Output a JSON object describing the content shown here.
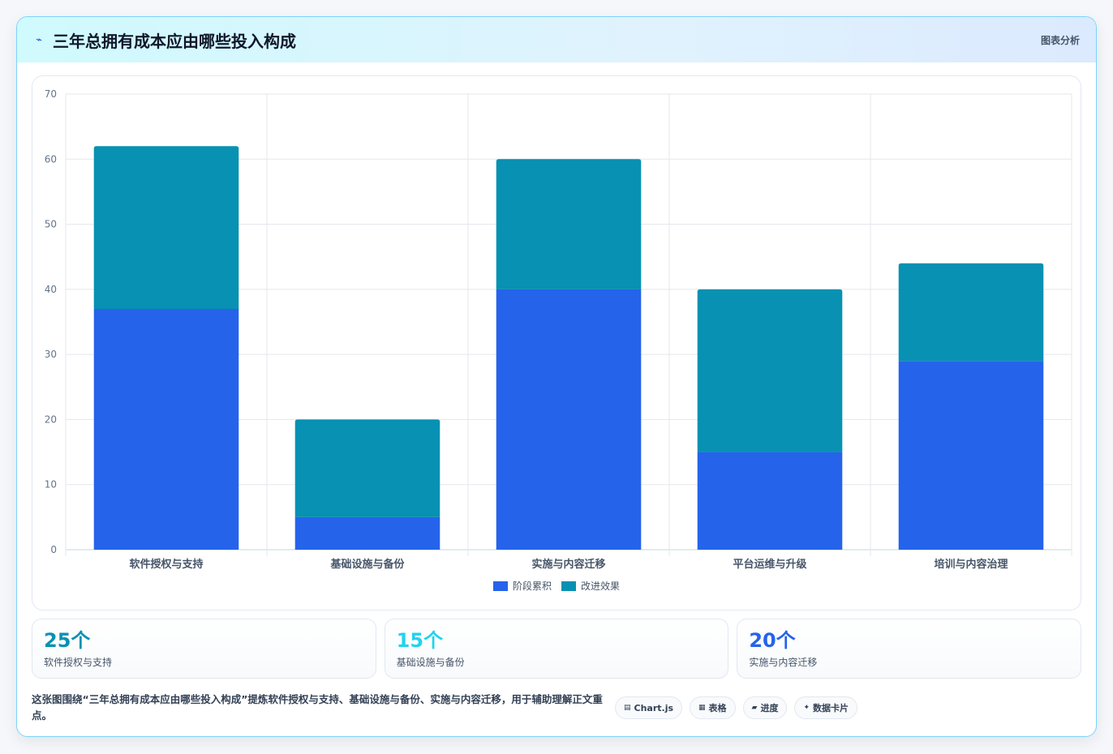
{
  "header": {
    "icon": "bolt-icon",
    "title": "三年总拥有成本应由哪些投入构成",
    "tag": "图表分析"
  },
  "chart_data": {
    "type": "bar",
    "stacked": true,
    "categories": [
      "软件授权与支持",
      "基础设施与备份",
      "实施与内容迁移",
      "平台运维与升级",
      "培训与内容治理"
    ],
    "series": [
      {
        "name": "阶段累积",
        "values": [
          37,
          5,
          40,
          15,
          29
        ],
        "color": "#2563eb"
      },
      {
        "name": "改进效果",
        "values": [
          25,
          15,
          20,
          25,
          15
        ],
        "color": "#0891b2"
      }
    ],
    "ylim": [
      0,
      70
    ],
    "yticks": [
      0,
      10,
      20,
      30,
      40,
      50,
      60,
      70
    ],
    "grid": true,
    "legend_position": "bottom"
  },
  "stats": [
    {
      "value": "25个",
      "label": "软件授权与支持",
      "color": "#0891b2"
    },
    {
      "value": "15个",
      "label": "基础设施与备份",
      "color": "#22d3ee"
    },
    {
      "value": "20个",
      "label": "实施与内容迁移",
      "color": "#2563eb"
    }
  ],
  "footer": {
    "text": "这张图围绕“三年总拥有成本应由哪些投入构成”提炼软件授权与支持、基础设施与备份、实施与内容迁移，用于辅助理解正文重点。",
    "chips": [
      {
        "icon": "chart-icon",
        "glyph": "▤",
        "label": "Chart.js"
      },
      {
        "icon": "table-icon",
        "glyph": "▦",
        "label": "表格"
      },
      {
        "icon": "progress-icon",
        "glyph": "▰",
        "label": "进度"
      },
      {
        "icon": "sparkle-icon",
        "glyph": "✦",
        "label": "数据卡片"
      }
    ]
  }
}
